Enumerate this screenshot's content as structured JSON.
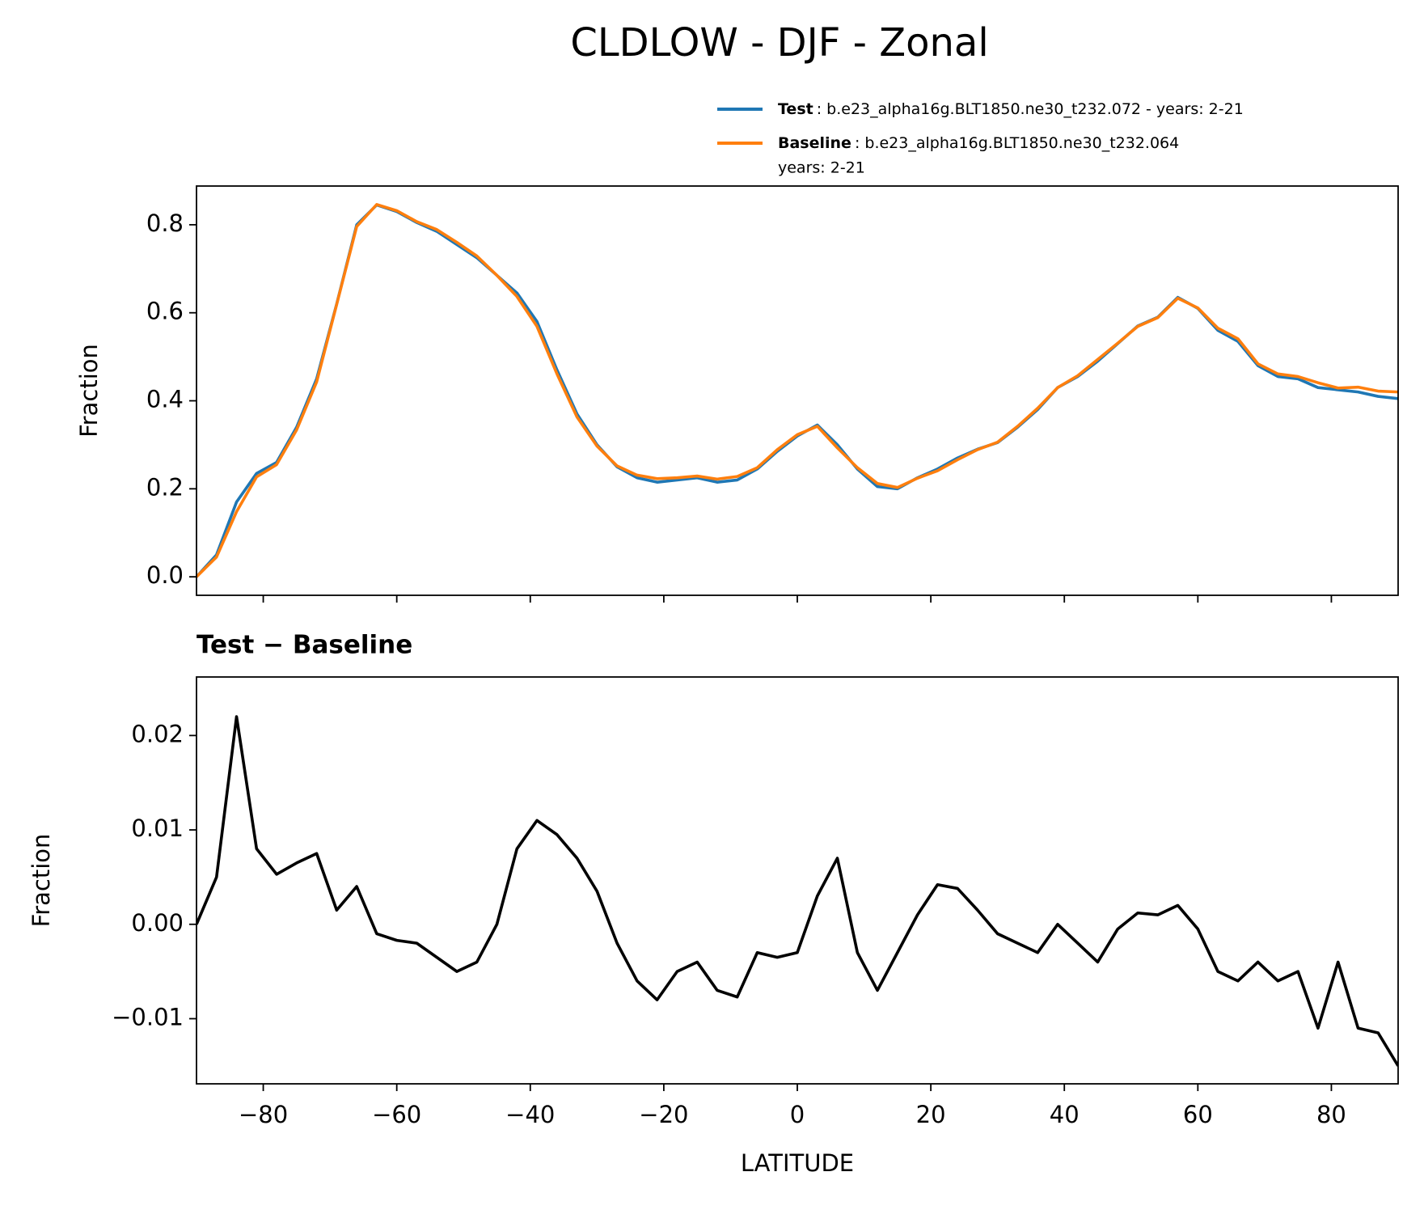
{
  "title": "CLDLOW - DJF - Zonal",
  "chart_data": [
    {
      "type": "line",
      "ylabel": "Fraction",
      "x": [
        -90,
        -87,
        -84,
        -81,
        -78,
        -75,
        -72,
        -69,
        -66,
        -63,
        -60,
        -57,
        -54,
        -51,
        -48,
        -45,
        -42,
        -39,
        -36,
        -33,
        -30,
        -27,
        -24,
        -21,
        -18,
        -15,
        -12,
        -9,
        -6,
        -3,
        0,
        3,
        6,
        9,
        12,
        15,
        18,
        21,
        24,
        27,
        30,
        33,
        36,
        39,
        42,
        45,
        48,
        51,
        54,
        57,
        60,
        63,
        66,
        69,
        72,
        75,
        78,
        81,
        84,
        87,
        90
      ],
      "series": [
        {
          "name": "Test",
          "label_lines": [
            ": b.e23_alpha16g.BLT1850.ne30_t232.072 - years: 2-21"
          ],
          "color": "#1f77b4",
          "values": [
            0.0,
            0.05,
            0.17,
            0.235,
            0.26,
            0.34,
            0.45,
            0.62,
            0.8,
            0.845,
            0.83,
            0.805,
            0.785,
            0.755,
            0.725,
            0.685,
            0.645,
            0.58,
            0.47,
            0.37,
            0.3,
            0.25,
            0.225,
            0.215,
            0.22,
            0.225,
            0.215,
            0.22,
            0.245,
            0.285,
            0.32,
            0.345,
            0.3,
            0.245,
            0.205,
            0.2,
            0.225,
            0.245,
            0.27,
            0.29,
            0.305,
            0.34,
            0.38,
            0.43,
            0.455,
            0.49,
            0.53,
            0.57,
            0.59,
            0.635,
            0.61,
            0.56,
            0.535,
            0.48,
            0.455,
            0.45,
            0.43,
            0.425,
            0.42,
            0.41,
            0.405
          ]
        },
        {
          "name": "Baseline",
          "label_lines": [
            ": b.e23_alpha16g.BLT1850.ne30_t232.064",
            "years: 2-21"
          ],
          "color": "#ff7f0e",
          "values": [
            0.0,
            0.045,
            0.148,
            0.227,
            0.255,
            0.334,
            0.443,
            0.619,
            0.796,
            0.846,
            0.832,
            0.807,
            0.789,
            0.76,
            0.729,
            0.685,
            0.637,
            0.569,
            0.461,
            0.363,
            0.297,
            0.252,
            0.231,
            0.223,
            0.225,
            0.229,
            0.222,
            0.228,
            0.248,
            0.289,
            0.323,
            0.342,
            0.293,
            0.248,
            0.212,
            0.203,
            0.224,
            0.241,
            0.266,
            0.289,
            0.306,
            0.342,
            0.383,
            0.43,
            0.457,
            0.494,
            0.531,
            0.569,
            0.589,
            0.633,
            0.611,
            0.565,
            0.541,
            0.484,
            0.461,
            0.455,
            0.441,
            0.429,
            0.431,
            0.422,
            0.42
          ]
        }
      ],
      "xlim": [
        -90,
        90
      ],
      "xticks": [
        -80,
        -60,
        -40,
        -20,
        0,
        20,
        40,
        60,
        80
      ],
      "show_xtick_labels": false,
      "ylim": [
        -0.042,
        0.888
      ],
      "yticks": [
        {
          "value": 0,
          "label": "0.0"
        },
        0.2,
        0.4,
        0.6,
        0.8
      ],
      "legend": "upper right"
    },
    {
      "type": "line",
      "title": "Test − Baseline",
      "xlabel": "LATITUDE",
      "ylabel": "Fraction",
      "x": [
        -90,
        -87,
        -84,
        -81,
        -78,
        -75,
        -72,
        -69,
        -66,
        -63,
        -60,
        -57,
        -54,
        -51,
        -48,
        -45,
        -42,
        -39,
        -36,
        -33,
        -30,
        -27,
        -24,
        -21,
        -18,
        -15,
        -12,
        -9,
        -6,
        -3,
        0,
        3,
        6,
        9,
        12,
        15,
        18,
        21,
        24,
        27,
        30,
        33,
        36,
        39,
        42,
        45,
        48,
        51,
        54,
        57,
        60,
        63,
        66,
        69,
        72,
        75,
        78,
        81,
        84,
        87,
        90
      ],
      "series": [
        {
          "color": "#000000",
          "values": [
            0.0,
            0.005,
            0.022,
            0.008,
            0.0053,
            0.0065,
            0.0075,
            0.0015,
            0.004,
            -0.001,
            -0.0017,
            -0.002,
            -0.0035,
            -0.005,
            -0.004,
            0.0,
            0.008,
            0.011,
            0.0095,
            0.007,
            0.0035,
            -0.002,
            -0.006,
            -0.008,
            -0.005,
            -0.004,
            -0.007,
            -0.0077,
            -0.003,
            -0.0035,
            -0.003,
            0.003,
            0.007,
            -0.003,
            -0.007,
            -0.003,
            0.001,
            0.0042,
            0.0038,
            0.0015,
            -0.001,
            -0.002,
            -0.003,
            0.0,
            -0.002,
            -0.004,
            -0.0005,
            0.0012,
            0.001,
            0.002,
            -0.0005,
            -0.005,
            -0.006,
            -0.004,
            -0.006,
            -0.005,
            -0.011,
            -0.004,
            -0.011,
            -0.0115,
            -0.015
          ]
        }
      ],
      "xlim": [
        -90,
        90
      ],
      "xticks": [
        {
          "value": -80,
          "label": "−80"
        },
        {
          "value": -60,
          "label": "−60"
        },
        {
          "value": -40,
          "label": "−40"
        },
        {
          "value": -20,
          "label": "−20"
        },
        0,
        20,
        40,
        60,
        80
      ],
      "show_xtick_labels": true,
      "ylim": [
        -0.0169,
        0.0262
      ],
      "yticks": [
        {
          "value": -0.01,
          "label": "−0.01"
        },
        {
          "value": 0,
          "label": "0.00"
        },
        0.01,
        0.02
      ]
    }
  ]
}
